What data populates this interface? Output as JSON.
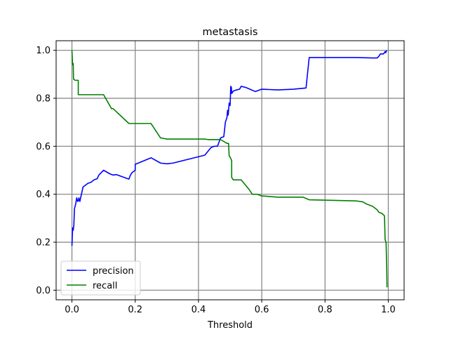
{
  "chart_data": {
    "type": "line",
    "title": "metastasis",
    "xlabel": "Threshold",
    "ylabel": "",
    "xlim": [
      -0.05,
      1.05
    ],
    "ylim": [
      -0.04,
      1.04
    ],
    "xticks": [
      "0.0",
      "0.2",
      "0.4",
      "0.6",
      "0.8",
      "1.0"
    ],
    "yticks": [
      "0.0",
      "0.2",
      "0.4",
      "0.6",
      "0.8",
      "1.0"
    ],
    "grid": true,
    "legend_position": "lower-left",
    "series": [
      {
        "name": "precision",
        "color": "#0000ff",
        "points": [
          [
            0.0,
            0.185
          ],
          [
            0.002,
            0.26
          ],
          [
            0.004,
            0.25
          ],
          [
            0.006,
            0.27
          ],
          [
            0.008,
            0.34
          ],
          [
            0.01,
            0.35
          ],
          [
            0.012,
            0.36
          ],
          [
            0.015,
            0.385
          ],
          [
            0.018,
            0.37
          ],
          [
            0.02,
            0.372
          ],
          [
            0.022,
            0.385
          ],
          [
            0.025,
            0.37
          ],
          [
            0.03,
            0.4
          ],
          [
            0.035,
            0.43
          ],
          [
            0.04,
            0.435
          ],
          [
            0.05,
            0.445
          ],
          [
            0.06,
            0.45
          ],
          [
            0.07,
            0.46
          ],
          [
            0.08,
            0.465
          ],
          [
            0.085,
            0.48
          ],
          [
            0.1,
            0.5
          ],
          [
            0.12,
            0.485
          ],
          [
            0.13,
            0.48
          ],
          [
            0.14,
            0.482
          ],
          [
            0.18,
            0.463
          ],
          [
            0.185,
            0.48
          ],
          [
            0.19,
            0.49
          ],
          [
            0.2,
            0.5
          ],
          [
            0.2,
            0.525
          ],
          [
            0.21,
            0.53
          ],
          [
            0.25,
            0.552
          ],
          [
            0.28,
            0.53
          ],
          [
            0.3,
            0.527
          ],
          [
            0.32,
            0.53
          ],
          [
            0.42,
            0.563
          ],
          [
            0.44,
            0.595
          ],
          [
            0.45,
            0.6
          ],
          [
            0.46,
            0.6
          ],
          [
            0.47,
            0.635
          ],
          [
            0.48,
            0.64
          ],
          [
            0.485,
            0.7
          ],
          [
            0.49,
            0.72
          ],
          [
            0.492,
            0.75
          ],
          [
            0.494,
            0.73
          ],
          [
            0.497,
            0.78
          ],
          [
            0.5,
            0.77
          ],
          [
            0.502,
            0.85
          ],
          [
            0.504,
            0.845
          ],
          [
            0.505,
            0.82
          ],
          [
            0.51,
            0.83
          ],
          [
            0.52,
            0.835
          ],
          [
            0.53,
            0.838
          ],
          [
            0.535,
            0.85
          ],
          [
            0.55,
            0.845
          ],
          [
            0.58,
            0.828
          ],
          [
            0.6,
            0.838
          ],
          [
            0.65,
            0.835
          ],
          [
            0.7,
            0.838
          ],
          [
            0.74,
            0.843
          ],
          [
            0.75,
            0.97
          ],
          [
            0.9,
            0.97
          ],
          [
            0.95,
            0.968
          ],
          [
            0.965,
            0.968
          ],
          [
            0.97,
            0.975
          ],
          [
            0.975,
            0.985
          ],
          [
            0.985,
            0.985
          ],
          [
            0.99,
            0.995
          ],
          [
            0.992,
            0.99
          ],
          [
            0.995,
            1.0
          ]
        ]
      },
      {
        "name": "recall",
        "color": "#008000",
        "points": [
          [
            0.0,
            1.0
          ],
          [
            0.002,
            0.94
          ],
          [
            0.004,
            0.945
          ],
          [
            0.005,
            0.88
          ],
          [
            0.01,
            0.875
          ],
          [
            0.015,
            0.875
          ],
          [
            0.02,
            0.875
          ],
          [
            0.02,
            0.815
          ],
          [
            0.1,
            0.815
          ],
          [
            0.125,
            0.757
          ],
          [
            0.13,
            0.757
          ],
          [
            0.18,
            0.695
          ],
          [
            0.25,
            0.695
          ],
          [
            0.28,
            0.635
          ],
          [
            0.3,
            0.63
          ],
          [
            0.42,
            0.63
          ],
          [
            0.43,
            0.628
          ],
          [
            0.47,
            0.628
          ],
          [
            0.48,
            0.62
          ],
          [
            0.49,
            0.612
          ],
          [
            0.495,
            0.612
          ],
          [
            0.497,
            0.56
          ],
          [
            0.5,
            0.555
          ],
          [
            0.505,
            0.54
          ],
          [
            0.505,
            0.47
          ],
          [
            0.51,
            0.46
          ],
          [
            0.535,
            0.46
          ],
          [
            0.56,
            0.42
          ],
          [
            0.57,
            0.4
          ],
          [
            0.585,
            0.4
          ],
          [
            0.6,
            0.393
          ],
          [
            0.65,
            0.388
          ],
          [
            0.73,
            0.388
          ],
          [
            0.75,
            0.377
          ],
          [
            0.9,
            0.372
          ],
          [
            0.92,
            0.368
          ],
          [
            0.93,
            0.36
          ],
          [
            0.95,
            0.35
          ],
          [
            0.96,
            0.34
          ],
          [
            0.965,
            0.335
          ],
          [
            0.97,
            0.325
          ],
          [
            0.98,
            0.32
          ],
          [
            0.988,
            0.31
          ],
          [
            0.99,
            0.21
          ],
          [
            0.993,
            0.2
          ],
          [
            0.995,
            0.1
          ],
          [
            0.996,
            0.012
          ]
        ]
      }
    ]
  }
}
